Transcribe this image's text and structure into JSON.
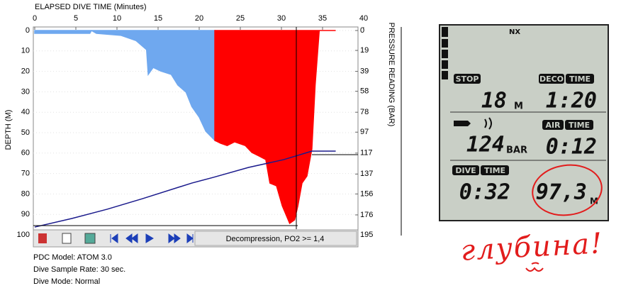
{
  "chart_data": {
    "type": "area",
    "x_label": "ELAPSED DIVE TIME (Minutes)",
    "y_label": "DEPTH (M)",
    "y2_label": "PRESSURE READING (BAR)",
    "xlim": [
      0,
      40
    ],
    "xticks": [
      0,
      5,
      10,
      15,
      20,
      25,
      30,
      35,
      40
    ],
    "ylim": [
      0,
      100
    ],
    "y_inverted": true,
    "yticks": [
      0,
      10,
      20,
      30,
      40,
      50,
      60,
      70,
      80,
      90,
      100
    ],
    "y2lim": [
      0,
      195
    ],
    "y2ticks": [
      0,
      19,
      39,
      58,
      78,
      97,
      117,
      137,
      156,
      176,
      195
    ],
    "series": [
      {
        "color": "#6fa8ef",
        "style": "area",
        "x": [
          0,
          6.7,
          6.9,
          7.5,
          10.5,
          12.3,
          13.6,
          13.8,
          14.4,
          15.3,
          16.6,
          17.4,
          18.4,
          19.1,
          20.0,
          20.8,
          21.9
        ],
        "values": [
          1.4,
          1.4,
          0,
          1.4,
          2.4,
          4.9,
          9.4,
          21.5,
          18.1,
          19.8,
          21.5,
          26.7,
          30.2,
          37.2,
          42.4,
          49.3,
          53.8
        ]
      },
      {
        "color": "#ff0000",
        "style": "area",
        "x": [
          21.9,
          22.6,
          23.4,
          24.3,
          25.6,
          26.4,
          27.3,
          28.1,
          28.6,
          29.4,
          30.1,
          31.0,
          31.6,
          32.0,
          32.5,
          33.1,
          33.7,
          34.1,
          34.6,
          36.6
        ],
        "values": [
          53.8,
          55.2,
          56.3,
          54.5,
          56.3,
          59.7,
          61.5,
          63.2,
          74.7,
          76.0,
          85.8,
          94.4,
          92.7,
          85.8,
          74.7,
          71.2,
          58.0,
          26.7,
          0,
          0
        ]
      },
      {
        "color": "#1a1a8c",
        "style": "line",
        "axis": "y2",
        "x": [
          0,
          4.5,
          8.8,
          13.1,
          19.1,
          21.7,
          26.0,
          30.3,
          33.7,
          36.6
        ],
        "values": [
          187.6,
          179.4,
          170.6,
          160.5,
          145.6,
          140.2,
          130.7,
          123.2,
          115.1,
          115.1
        ]
      }
    ]
  },
  "toolbar": {
    "status": "Decompression, PO2 >= 1,4"
  },
  "info": [
    "PDC Model: ATOM 3.0",
    "Dive Sample Rate: 30 sec.",
    "Dive Mode: Normal"
  ],
  "computer": {
    "mode": "NX",
    "stop": {
      "label": "STOP",
      "depth": "18",
      "unit": "M"
    },
    "deco": {
      "label": "DECO",
      "time_label": "TIME",
      "value": "1:20"
    },
    "air": {
      "pressure": "124",
      "unit": "BAR",
      "label": "AIR",
      "time_label": "TIME",
      "value": "0:12"
    },
    "dive": {
      "label": "DIVE",
      "time_label": "TIME",
      "value": "0:32"
    },
    "depth": {
      "value": "97,3",
      "unit": "M"
    }
  },
  "annotation": "глубина!"
}
